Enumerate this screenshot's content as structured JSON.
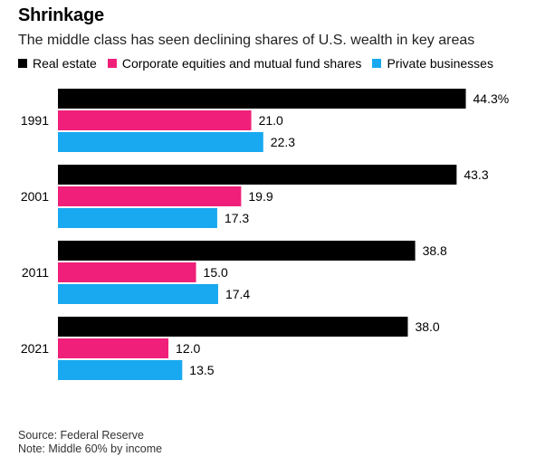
{
  "title": "Shrinkage",
  "subtitle": "The middle class has seen declining shares of U.S. wealth in key areas",
  "footer": {
    "source": "Source: Federal Reserve",
    "note": "Note: Middle 60% by income"
  },
  "chart_data": {
    "type": "bar",
    "orientation": "horizontal",
    "categories": [
      "1991",
      "2001",
      "2011",
      "2021"
    ],
    "series": [
      {
        "name": "Real estate",
        "color": "#000000",
        "values": [
          44.3,
          43.3,
          38.8,
          38.0
        ]
      },
      {
        "name": "Corporate equities and mutual fund shares",
        "color": "#f0207a",
        "values": [
          21.0,
          19.9,
          15.0,
          12.0
        ]
      },
      {
        "name": "Private businesses",
        "color": "#18a9f0",
        "values": [
          22.3,
          17.3,
          17.4,
          13.5
        ]
      }
    ],
    "data_labels": [
      [
        "44.3%",
        "21.0",
        "22.3"
      ],
      [
        "43.3",
        "19.9",
        "17.3"
      ],
      [
        "38.8",
        "15.0",
        "17.4"
      ],
      [
        "38.0",
        "12.0",
        "13.5"
      ]
    ],
    "xlim": [
      0,
      50
    ],
    "grid": false,
    "legend_position": "top-left"
  }
}
